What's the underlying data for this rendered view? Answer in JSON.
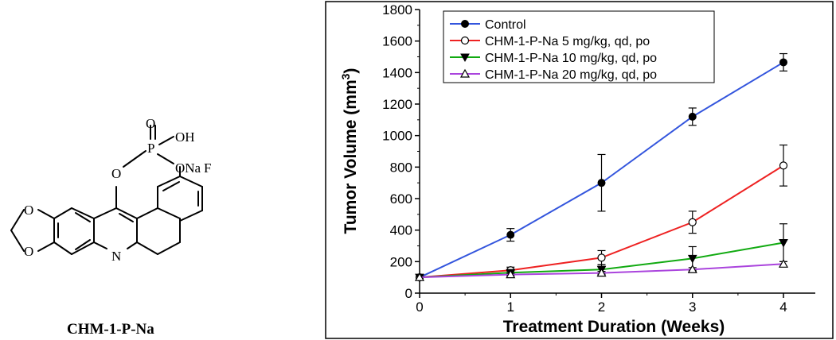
{
  "molecule": {
    "caption": "CHM-1-P-Na",
    "atoms": {
      "o_double": "O",
      "p": "P",
      "oh": "OH",
      "ona": "ONa",
      "o_ester": "O",
      "o_ring_top": "O",
      "o_ring_bottom": "O",
      "n": "N",
      "f": "F"
    }
  },
  "chart_data": {
    "type": "line",
    "xlabel": "Treatment Duration (Weeks)",
    "ylabel": "Tumor Volume (mm",
    "ylabel_sup": "3",
    "ylabel_close": ")",
    "xlim": [
      0,
      4.35
    ],
    "ylim": [
      0,
      1800
    ],
    "x_ticks": [
      0,
      1,
      2,
      3,
      4
    ],
    "y_ticks": [
      0,
      200,
      400,
      600,
      800,
      1000,
      1200,
      1400,
      1600,
      1800
    ],
    "legend_position": "top-left",
    "grid": false,
    "series": [
      {
        "name": "Control",
        "color": "#3355dd",
        "marker": "filled-circle",
        "x": [
          0,
          1,
          2,
          3,
          4
        ],
        "y": [
          100,
          370,
          700,
          1120,
          1465
        ],
        "err": [
          0,
          40,
          180,
          55,
          55
        ]
      },
      {
        "name": "CHM-1-P-Na 5 mg/kg, qd, po",
        "color": "#ee2222",
        "marker": "open-circle",
        "x": [
          0,
          1,
          2,
          3,
          4
        ],
        "y": [
          100,
          145,
          225,
          450,
          810
        ],
        "err": [
          0,
          20,
          45,
          70,
          130
        ]
      },
      {
        "name": "CHM-1-P-Na 10 mg/kg, qd, po",
        "color": "#11aa11",
        "marker": "filled-triangle-down",
        "x": [
          0,
          1,
          2,
          3,
          4
        ],
        "y": [
          100,
          130,
          150,
          220,
          320
        ],
        "err": [
          0,
          15,
          30,
          75,
          120
        ]
      },
      {
        "name": "CHM-1-P-Na 20 mg/kg, qd, po",
        "color": "#aa44dd",
        "marker": "open-triangle-up",
        "x": [
          0,
          1,
          2,
          3,
          4
        ],
        "y": [
          100,
          118,
          128,
          150,
          185
        ],
        "err": [
          0,
          8,
          10,
          12,
          15
        ]
      }
    ]
  }
}
